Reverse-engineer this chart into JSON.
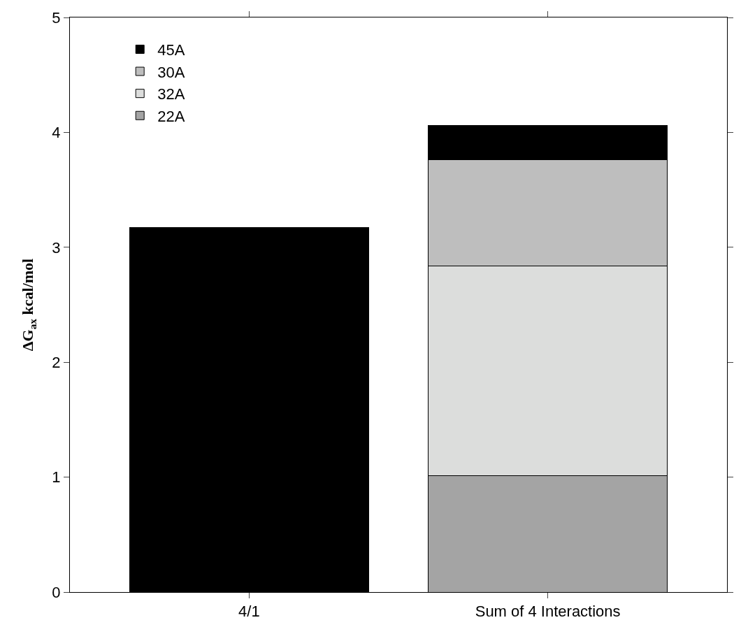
{
  "chart_data": {
    "type": "bar",
    "stacked": true,
    "categories": [
      "4/1",
      "Sum of 4 Interactions"
    ],
    "ylabel": "ΔG$_{ax}$ kcal/mol",
    "ylim": [
      0,
      5
    ],
    "yticks": [
      0,
      1,
      2,
      3,
      4,
      5
    ],
    "grid": false,
    "legend": "top left",
    "series": [
      {
        "name": "22A",
        "color": "#a4a4a4",
        "values": [
          null,
          1.01
        ]
      },
      {
        "name": "32A",
        "color": "#dcdddc",
        "values": [
          null,
          1.83
        ]
      },
      {
        "name": "30A",
        "color": "#bebebe",
        "values": [
          null,
          0.92
        ]
      },
      {
        "name": "45A",
        "color": "#000000",
        "values": [
          3.17,
          0.3
        ]
      }
    ]
  }
}
